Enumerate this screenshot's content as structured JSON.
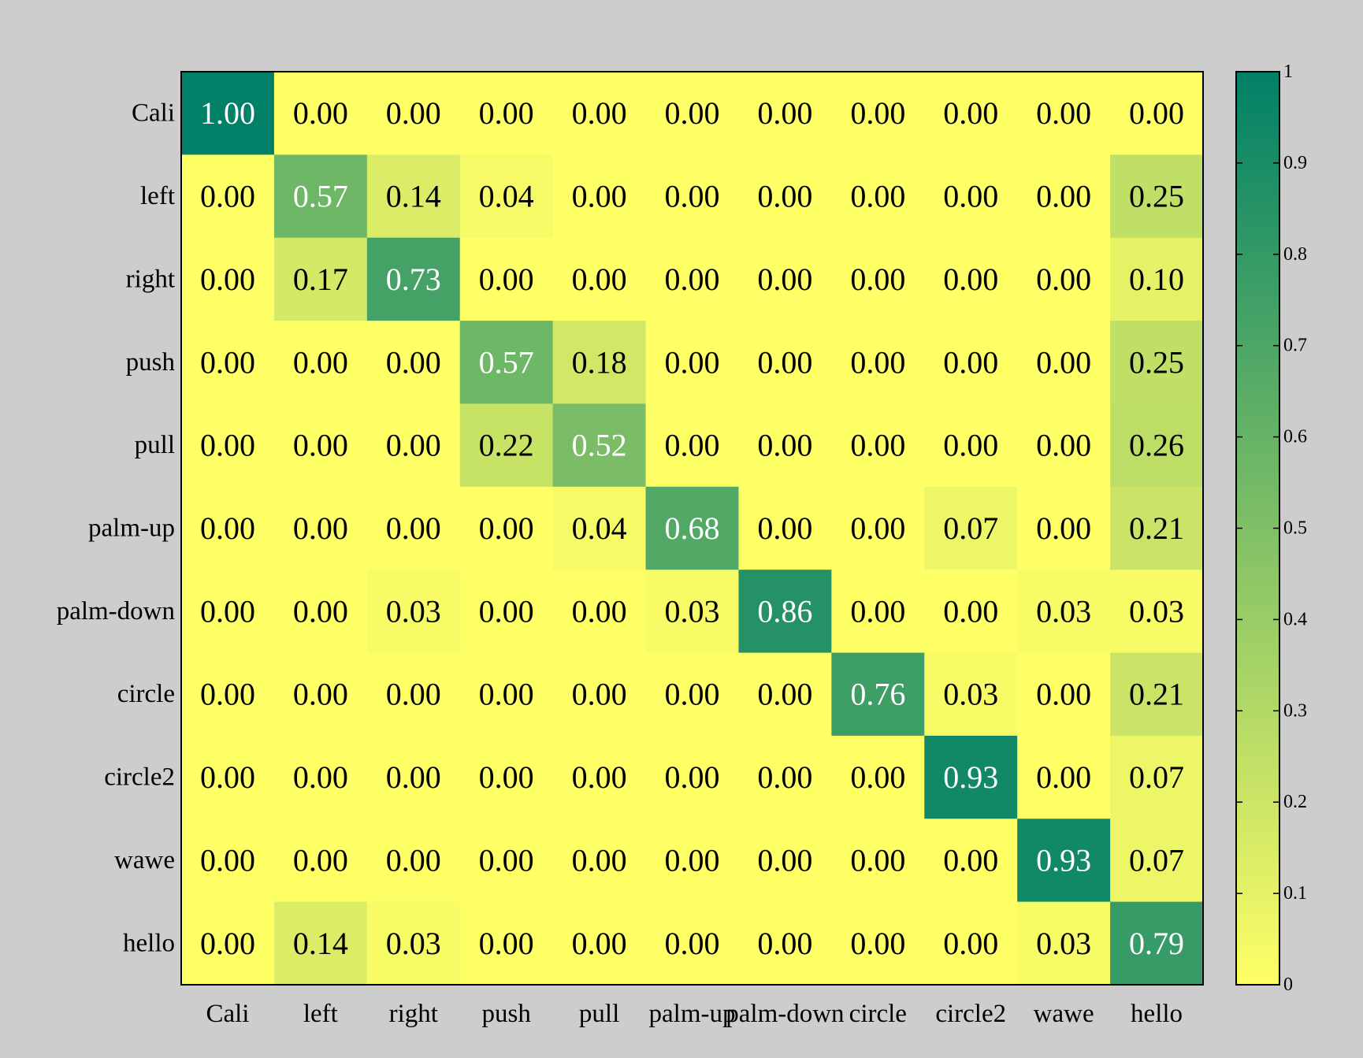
{
  "chart_data": {
    "type": "heatmap",
    "title": "",
    "xlabel": "",
    "ylabel": "",
    "rows": [
      "Cali",
      "left",
      "right",
      "push",
      "pull",
      "palm-up",
      "palm-down",
      "circle",
      "circle2",
      "wawe",
      "hello"
    ],
    "columns": [
      "Cali",
      "left",
      "right",
      "push",
      "pull",
      "palm-up",
      "palm-down",
      "circle",
      "circle2",
      "wawe",
      "hello"
    ],
    "values": [
      [
        1.0,
        0.0,
        0.0,
        0.0,
        0.0,
        0.0,
        0.0,
        0.0,
        0.0,
        0.0,
        0.0
      ],
      [
        0.0,
        0.57,
        0.14,
        0.04,
        0.0,
        0.0,
        0.0,
        0.0,
        0.0,
        0.0,
        0.25
      ],
      [
        0.0,
        0.17,
        0.73,
        0.0,
        0.0,
        0.0,
        0.0,
        0.0,
        0.0,
        0.0,
        0.1
      ],
      [
        0.0,
        0.0,
        0.0,
        0.57,
        0.18,
        0.0,
        0.0,
        0.0,
        0.0,
        0.0,
        0.25
      ],
      [
        0.0,
        0.0,
        0.0,
        0.22,
        0.52,
        0.0,
        0.0,
        0.0,
        0.0,
        0.0,
        0.26
      ],
      [
        0.0,
        0.0,
        0.0,
        0.0,
        0.04,
        0.68,
        0.0,
        0.0,
        0.07,
        0.0,
        0.21
      ],
      [
        0.0,
        0.0,
        0.03,
        0.0,
        0.0,
        0.03,
        0.86,
        0.0,
        0.0,
        0.03,
        0.03
      ],
      [
        0.0,
        0.0,
        0.0,
        0.0,
        0.0,
        0.0,
        0.0,
        0.76,
        0.03,
        0.0,
        0.21
      ],
      [
        0.0,
        0.0,
        0.0,
        0.0,
        0.0,
        0.0,
        0.0,
        0.0,
        0.93,
        0.0,
        0.07
      ],
      [
        0.0,
        0.0,
        0.0,
        0.0,
        0.0,
        0.0,
        0.0,
        0.0,
        0.0,
        0.93,
        0.07
      ],
      [
        0.0,
        0.14,
        0.03,
        0.0,
        0.0,
        0.0,
        0.0,
        0.0,
        0.0,
        0.03,
        0.79
      ]
    ],
    "value_format": "0.00",
    "vmin": 0,
    "vmax": 1,
    "colormap": "summer_r",
    "colormap_low": "#ffff66",
    "colormap_high": "#008066",
    "text_color_dark": "#000000",
    "text_color_light": "#ffffff",
    "colorbar": {
      "ticks": [
        0,
        0.1,
        0.2,
        0.3,
        0.4,
        0.5,
        0.6,
        0.7,
        0.8,
        0.9,
        1
      ],
      "tick_labels": [
        "0",
        "0.1",
        "0.2",
        "0.3",
        "0.4",
        "0.5",
        "0.6",
        "0.7",
        "0.8",
        "0.9",
        "1"
      ]
    },
    "grid": false,
    "legend": "none"
  },
  "colors": {
    "background": "#cdcdcd",
    "frame": "#000000"
  }
}
